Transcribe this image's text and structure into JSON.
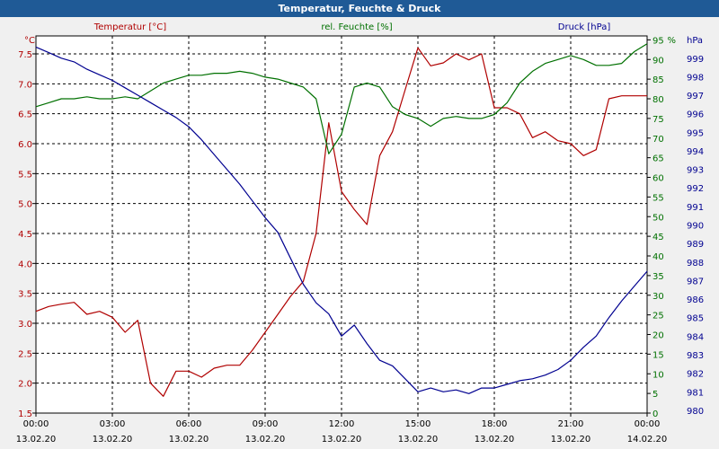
{
  "window": {
    "title": "Temperatur, Feuchte & Druck"
  },
  "chart_data": {
    "type": "line",
    "title": "Temperatur, Feuchte & Druck",
    "grid": true,
    "axes": {
      "temperature": {
        "label": "Temperatur [°C]",
        "unit": "°C",
        "color": "#b00000",
        "range": [
          1.5,
          7.8
        ],
        "ticks": [
          "1.5",
          "2.0",
          "2.5",
          "3.0",
          "3.5",
          "4.0",
          "4.5",
          "5.0",
          "5.5",
          "6.0",
          "6.5",
          "7.0",
          "7.5"
        ]
      },
      "humidity": {
        "label": "rel. Feuchte [%]",
        "unit": "%",
        "color": "#007000",
        "range": [
          0,
          96
        ],
        "ticks": [
          "0",
          "5",
          "10",
          "15",
          "20",
          "25",
          "30",
          "35",
          "40",
          "45",
          "50",
          "55",
          "60",
          "65",
          "70",
          "75",
          "80",
          "85",
          "90",
          "95"
        ]
      },
      "pressure": {
        "label": "Druck [hPa]",
        "unit": "hPa",
        "color": "#000090",
        "range": [
          979.85,
          1000.2
        ],
        "ticks": [
          "980",
          "981",
          "982",
          "983",
          "984",
          "985",
          "986",
          "987",
          "988",
          "989",
          "990",
          "991",
          "992",
          "993",
          "994",
          "995",
          "996",
          "997",
          "998",
          "999"
        ]
      }
    },
    "x_ticks": [
      {
        "time": "00:00",
        "date": "13.02.20"
      },
      {
        "time": "03:00",
        "date": "13.02.20"
      },
      {
        "time": "06:00",
        "date": "13.02.20"
      },
      {
        "time": "09:00",
        "date": "13.02.20"
      },
      {
        "time": "12:00",
        "date": "13.02.20"
      },
      {
        "time": "15:00",
        "date": "13.02.20"
      },
      {
        "time": "18:00",
        "date": "13.02.20"
      },
      {
        "time": "21:00",
        "date": "13.02.20"
      },
      {
        "time": "00:00",
        "date": "14.02.20"
      }
    ],
    "x_range_hours": [
      0,
      24
    ],
    "series": [
      {
        "name": "Temperatur [°C]",
        "axis": "temperature",
        "color": "#b00000",
        "x": [
          0,
          0.5,
          1,
          1.5,
          2,
          2.5,
          3,
          3.5,
          4,
          4.5,
          5,
          5.5,
          6,
          6.5,
          7,
          7.5,
          8,
          8.5,
          9,
          9.5,
          10,
          10.5,
          11,
          11.5,
          12,
          12.5,
          13,
          13.5,
          14,
          14.5,
          15,
          15.5,
          16,
          16.5,
          17,
          17.5,
          18,
          18.5,
          19,
          19.5,
          20,
          20.5,
          21,
          21.5,
          22,
          22.5,
          23,
          23.5,
          24
        ],
        "values": [
          3.2,
          3.28,
          3.32,
          3.35,
          3.15,
          3.2,
          3.1,
          2.85,
          3.05,
          2.0,
          1.78,
          2.2,
          2.2,
          2.1,
          2.25,
          2.3,
          2.3,
          2.55,
          2.85,
          3.15,
          3.45,
          3.7,
          4.5,
          6.35,
          5.2,
          4.9,
          4.65,
          5.8,
          6.2,
          6.9,
          7.6,
          7.3,
          7.35,
          7.5,
          7.4,
          7.5,
          6.6,
          6.6,
          6.5,
          6.1,
          6.2,
          6.05,
          6.0,
          5.8,
          5.9,
          6.75,
          6.8,
          6.8,
          6.8
        ]
      },
      {
        "name": "rel. Feuchte [%]",
        "axis": "humidity",
        "color": "#007000",
        "x": [
          0,
          0.5,
          1,
          1.5,
          2,
          2.5,
          3,
          3.5,
          4,
          4.5,
          5,
          5.5,
          6,
          6.5,
          7,
          7.5,
          8,
          8.5,
          9,
          9.5,
          10,
          10.5,
          11,
          11.5,
          12,
          12.5,
          13,
          13.5,
          14,
          14.5,
          15,
          15.5,
          16,
          16.5,
          17,
          17.5,
          18,
          18.5,
          19,
          19.5,
          20,
          20.5,
          21,
          21.5,
          22,
          22.5,
          23,
          23.5,
          24
        ],
        "values": [
          78,
          79,
          80,
          80,
          80.5,
          80,
          80,
          80.5,
          80,
          82,
          84,
          85,
          86,
          86,
          86.5,
          86.5,
          87,
          86.5,
          85.5,
          85,
          84,
          83,
          80,
          66,
          71,
          83,
          84,
          83,
          78,
          76,
          75,
          73,
          75,
          75.5,
          75,
          75,
          76,
          79,
          84,
          87,
          89,
          90,
          91,
          90,
          88.5,
          88.5,
          89,
          92,
          94
        ]
      },
      {
        "name": "Druck [hPa]",
        "axis": "pressure",
        "color": "#000090",
        "x": [
          0,
          0.5,
          1,
          1.5,
          2,
          2.5,
          3,
          3.5,
          4,
          4.5,
          5,
          5.5,
          6,
          6.5,
          7,
          7.5,
          8,
          8.5,
          9,
          9.5,
          10,
          10.5,
          11,
          11.5,
          12,
          12.5,
          13,
          13.5,
          14,
          14.5,
          15,
          15.5,
          16,
          16.5,
          17,
          17.5,
          18,
          18.5,
          19,
          19.5,
          20,
          20.5,
          21,
          21.5,
          22,
          22.5,
          23,
          23.5,
          24
        ],
        "values": [
          999.6,
          999.3,
          999.0,
          998.8,
          998.4,
          998.1,
          997.8,
          997.4,
          997.0,
          996.6,
          996.2,
          995.8,
          995.3,
          994.6,
          993.8,
          993.0,
          992.2,
          991.3,
          990.4,
          989.6,
          988.2,
          986.8,
          985.8,
          985.2,
          984.0,
          984.6,
          983.6,
          982.7,
          982.4,
          981.7,
          981.0,
          981.2,
          981.0,
          981.1,
          980.9,
          981.2,
          981.2,
          981.4,
          981.6,
          981.7,
          981.9,
          982.2,
          982.7,
          983.4,
          984.0,
          985.0,
          985.9,
          986.7,
          987.5
        ]
      }
    ]
  }
}
